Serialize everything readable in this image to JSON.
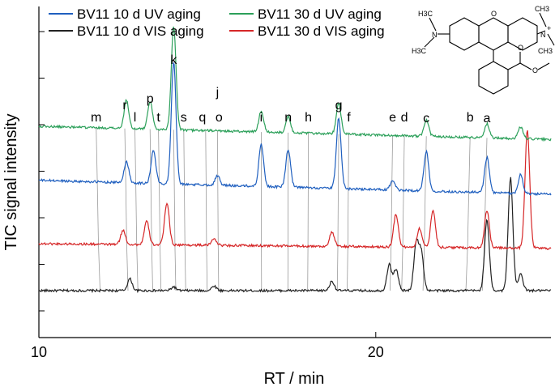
{
  "chart_data": {
    "type": "line",
    "xlabel": "RT / min",
    "ylabel": "TIC signal intensity",
    "xlim": [
      10,
      25.2
    ],
    "x_ticks": [
      10,
      20
    ],
    "y_tick_count": 7,
    "legend": {
      "placement": "top-left",
      "entries": [
        {
          "label": "BV11 10 d UV aging",
          "color": "#1f5fbf"
        },
        {
          "label": "BV11 30 d UV aging",
          "color": "#2ca05a"
        },
        {
          "label": "BV11 10 d VIS aging",
          "color": "#222222"
        },
        {
          "label": "BV11 30 d VIS aging",
          "color": "#d62728"
        }
      ]
    },
    "series": [
      {
        "name": "BV11 10 d VIS aging",
        "color": "#222222",
        "baseline": 0.5,
        "drift": 0.0,
        "peaks": [
          [
            12.7,
            0.25
          ],
          [
            14.0,
            0.08
          ],
          [
            15.2,
            0.1
          ],
          [
            18.7,
            0.2
          ],
          [
            20.4,
            0.55
          ],
          [
            20.6,
            0.45
          ],
          [
            21.2,
            1.0
          ],
          [
            21.35,
            0.8
          ],
          [
            23.3,
            1.5
          ],
          [
            24.0,
            2.4
          ],
          [
            24.3,
            0.35
          ]
        ]
      },
      {
        "name": "BV11 30 d VIS aging",
        "color": "#d62728",
        "baseline": 1.5,
        "drift": 0.1,
        "peaks": [
          [
            12.5,
            0.3
          ],
          [
            13.2,
            0.5
          ],
          [
            13.8,
            0.9
          ],
          [
            15.2,
            0.15
          ],
          [
            18.7,
            0.3
          ],
          [
            20.6,
            0.7
          ],
          [
            21.3,
            0.4
          ],
          [
            21.7,
            0.8
          ],
          [
            23.3,
            0.8
          ],
          [
            24.5,
            2.5
          ]
        ]
      },
      {
        "name": "BV11 10 d UV aging",
        "color": "#1f5fbf",
        "baseline": 2.85,
        "drift": 0.3,
        "peaks": [
          [
            12.6,
            0.45
          ],
          [
            13.4,
            0.7
          ],
          [
            14.0,
            2.6
          ],
          [
            15.3,
            0.2
          ],
          [
            16.6,
            0.9
          ],
          [
            17.4,
            0.8
          ],
          [
            18.9,
            1.5
          ],
          [
            20.5,
            0.2
          ],
          [
            21.5,
            0.85
          ],
          [
            23.3,
            0.75
          ],
          [
            24.3,
            0.4
          ]
        ]
      },
      {
        "name": "BV11 30 d UV aging",
        "color": "#2ca05a",
        "baseline": 4.0,
        "drift": 0.28,
        "peaks": [
          [
            12.6,
            0.6
          ],
          [
            13.3,
            0.6
          ],
          [
            14.0,
            2.2
          ],
          [
            16.6,
            0.45
          ],
          [
            17.4,
            0.35
          ],
          [
            18.9,
            0.65
          ],
          [
            21.5,
            0.35
          ],
          [
            23.3,
            0.3
          ],
          [
            24.3,
            0.25
          ]
        ]
      }
    ],
    "peak_labels": [
      {
        "label": "m",
        "x": 11.7
      },
      {
        "label": "r",
        "x": 12.55
      },
      {
        "label": "l",
        "x": 12.85
      },
      {
        "label": "p",
        "x": 13.3
      },
      {
        "label": "t",
        "x": 13.55
      },
      {
        "label": "k",
        "x": 14.0
      },
      {
        "label": "s",
        "x": 14.3
      },
      {
        "label": "q",
        "x": 14.95
      },
      {
        "label": "o",
        "x": 15.3
      },
      {
        "label": "j",
        "x": 15.3
      },
      {
        "label": "i",
        "x": 16.6
      },
      {
        "label": "n",
        "x": 17.4
      },
      {
        "label": "h",
        "x": 18.0
      },
      {
        "label": "g",
        "x": 18.9
      },
      {
        "label": "f",
        "x": 19.2
      },
      {
        "label": "e",
        "x": 20.5
      },
      {
        "label": "d",
        "x": 20.85
      },
      {
        "label": "c",
        "x": 21.5
      },
      {
        "label": "b",
        "x": 22.8
      },
      {
        "label": "a",
        "x": 23.3
      }
    ],
    "structure_labels": {
      "left_methyl": "H3C",
      "left_lower": "H3C",
      "ring_o": "O",
      "right_methyl": "CH3",
      "right_lower": "CH3",
      "n_left": "N",
      "n_right": "N",
      "charge": "+",
      "carbonyl_o": "O",
      "ester_o": "O"
    }
  }
}
